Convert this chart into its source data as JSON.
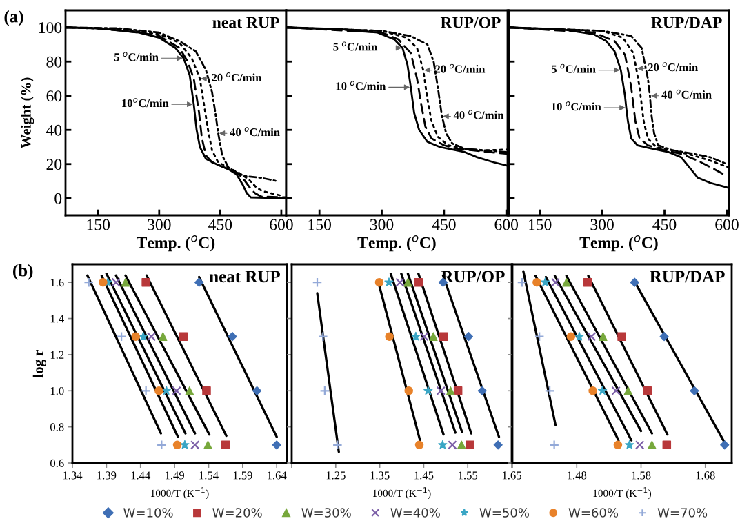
{
  "chart_data": [
    {
      "type": "line",
      "title": "neat RUP",
      "xlabel": "Temp. ($^{o}$C)",
      "ylabel": "Weight (%)",
      "xlim": [
        70,
        612
      ],
      "xticks": [
        150,
        300,
        450,
        600
      ],
      "ylim": [
        -10,
        110
      ],
      "yticks": [
        0,
        20,
        40,
        60,
        80,
        100
      ],
      "annotations": [
        "(a)",
        {
          "text": "5 $^{o}$C/min",
          "x": 360,
          "y": 82
        },
        {
          "text": "10$^{o}$C/min",
          "x": 385,
          "y": 55
        },
        {
          "text": "20 $^{o}$C/min",
          "x": 400,
          "y": 70
        },
        {
          "text": "40 $^{o}$C/min",
          "x": 445,
          "y": 38
        }
      ],
      "series": [
        {
          "type": "line",
          "color": "#000000",
          "line_style": "solid",
          "x": [
            70,
            150,
            250,
            300,
            340,
            360,
            375,
            385,
            392,
            400,
            415,
            440,
            470,
            490,
            505,
            515,
            525,
            612
          ],
          "values": [
            100,
            99.5,
            97,
            94,
            88,
            82,
            72,
            55,
            40,
            30,
            23,
            20,
            17,
            14,
            8,
            3,
            0.5,
            0
          ]
        },
        {
          "type": "line",
          "color": "#000000",
          "line_style": "dashed",
          "x": [
            70,
            150,
            250,
            300,
            350,
            370,
            385,
            398,
            405,
            415,
            430,
            460,
            490,
            505,
            520,
            535,
            550,
            612
          ],
          "values": [
            100,
            99.5,
            97,
            95,
            88,
            80,
            70,
            50,
            35,
            25,
            21,
            18,
            15,
            12,
            7,
            3,
            1,
            0.5
          ]
        },
        {
          "type": "line",
          "color": "#000000",
          "line_style": "dotted",
          "x": [
            70,
            200,
            300,
            350,
            380,
            400,
            412,
            420,
            430,
            445,
            470,
            495,
            520,
            540,
            555,
            600
          ],
          "values": [
            100,
            99,
            96,
            91,
            82,
            70,
            52,
            40,
            28,
            21,
            18,
            15,
            11,
            6,
            4,
            1.5
          ]
        },
        {
          "type": "line",
          "color": "#000000",
          "line_style": "dashdot",
          "x": [
            70,
            200,
            300,
            350,
            390,
            415,
            430,
            438,
            445,
            455,
            470,
            490,
            510,
            550,
            590
          ],
          "values": [
            100,
            99.5,
            97,
            92,
            86,
            75,
            62,
            50,
            38,
            25,
            18,
            15,
            13,
            12,
            10
          ]
        }
      ]
    },
    {
      "type": "line",
      "title": "RUP/OP",
      "xlabel": "Temp. ($^{o}$C)",
      "xlim": [
        70,
        603
      ],
      "xticks": [
        150,
        300,
        450,
        600
      ],
      "ylim": [
        -10,
        110
      ],
      "yticks": [
        0,
        20,
        40,
        60,
        80,
        100
      ],
      "tick_labels": "x",
      "annotations": [
        {
          "text": "5 $^{o}$C/min",
          "x": 350,
          "y": 88
        },
        {
          "text": "10 $^{o}$C/min",
          "x": 370,
          "y": 65
        },
        {
          "text": "20 $^{o}$C/min",
          "x": 400,
          "y": 75
        },
        {
          "text": "40 $^{o}$C/min",
          "x": 445,
          "y": 48
        }
      ],
      "series": [
        {
          "type": "line",
          "color": "#000000",
          "line_style": "solid",
          "x": [
            70,
            200,
            290,
            330,
            350,
            362,
            370,
            378,
            390,
            410,
            440,
            480,
            500,
            530,
            570,
            603
          ],
          "values": [
            100,
            99,
            97,
            93,
            88,
            78,
            65,
            50,
            40,
            33,
            30,
            28,
            27,
            24,
            21,
            19
          ]
        },
        {
          "type": "line",
          "color": "#000000",
          "line_style": "dashed",
          "x": [
            70,
            300,
            340,
            370,
            385,
            395,
            405,
            420,
            450,
            480,
            520,
            560,
            603
          ],
          "values": [
            100,
            97,
            93,
            85,
            70,
            55,
            42,
            35,
            31,
            29,
            28,
            27,
            26
          ]
        },
        {
          "type": "line",
          "color": "#000000",
          "line_style": "dotted",
          "x": [
            70,
            300,
            360,
            385,
            400,
            410,
            420,
            435,
            460,
            500,
            540,
            603
          ],
          "values": [
            100,
            98,
            94,
            88,
            75,
            58,
            45,
            36,
            31,
            29,
            28,
            28.5
          ]
        },
        {
          "type": "line",
          "color": "#000000",
          "line_style": "dashdot",
          "x": [
            70,
            300,
            370,
            410,
            425,
            435,
            445,
            455,
            470,
            500,
            550,
            603
          ],
          "values": [
            100,
            98,
            95,
            90,
            80,
            65,
            48,
            38,
            32,
            29,
            28,
            27
          ]
        }
      ]
    },
    {
      "type": "line",
      "title": "RUP/DAP",
      "xlabel": "Temp. ($^{o}$C)",
      "xlim": [
        76,
        605
      ],
      "xticks": [
        150,
        300,
        450,
        600
      ],
      "ylim": [
        -10,
        110
      ],
      "yticks": [
        0,
        20,
        40,
        60,
        80,
        100
      ],
      "tick_labels": "x",
      "annotations": [
        {
          "text": "5 $^{o}$C/min",
          "x": 345,
          "y": 75
        },
        {
          "text": "10 $^{o}$C/min",
          "x": 358,
          "y": 53
        },
        {
          "text": "20 $^{o}$C/min",
          "x": 382,
          "y": 76
        },
        {
          "text": "40 $^{o}$C/min",
          "x": 415,
          "y": 60
        }
      ],
      "series": [
        {
          "type": "line",
          "color": "#000000",
          "line_style": "solid",
          "x": [
            76,
            200,
            280,
            310,
            330,
            345,
            355,
            358,
            362,
            370,
            385,
            420,
            460,
            490,
            510,
            530,
            560,
            590,
            605
          ],
          "values": [
            100,
            99,
            96,
            92,
            86,
            75,
            60,
            53,
            45,
            35,
            31,
            29,
            27,
            24,
            18,
            12,
            9,
            7,
            6
          ]
        },
        {
          "type": "line",
          "color": "#000000",
          "line_style": "dashed",
          "x": [
            76,
            280,
            330,
            355,
            370,
            380,
            390,
            410,
            450,
            490,
            530,
            570,
            600
          ],
          "values": [
            100,
            97,
            92,
            84,
            65,
            45,
            35,
            31,
            28,
            26,
            22,
            17,
            13
          ]
        },
        {
          "type": "line",
          "color": "#000000",
          "line_style": "dotted",
          "x": [
            76,
            300,
            350,
            375,
            382,
            390,
            400,
            410,
            430,
            470,
            520,
            560,
            605
          ],
          "values": [
            100,
            98,
            94,
            85,
            76,
            65,
            45,
            35,
            30,
            28,
            25,
            22,
            18
          ]
        },
        {
          "type": "line",
          "color": "#000000",
          "line_style": "dashdot",
          "x": [
            76,
            300,
            370,
            395,
            410,
            415,
            418,
            425,
            435,
            470,
            520,
            560,
            600
          ],
          "values": [
            100,
            98,
            95,
            88,
            70,
            60,
            50,
            38,
            31,
            28,
            26,
            24,
            20
          ]
        }
      ]
    },
    {
      "type": "scatter",
      "title": "neat RUP",
      "xlabel": "1000/T (K$^{−1}$)",
      "ylabel": "log r",
      "xlim": [
        1.34,
        1.655
      ],
      "xticks": [
        1.34,
        1.39,
        1.44,
        1.49,
        1.54,
        1.59,
        1.64
      ],
      "ylim": [
        0.6,
        1.7
      ],
      "yticks": [
        0.6,
        0.8,
        {
          "value": 1.0,
          "label": "1.0"
        },
        1.2,
        1.4,
        1.6
      ],
      "annotations": [
        "(b)"
      ],
      "series": [
        {
          "type": "scatter",
          "color": "#3f6fb5",
          "marker": "diamond",
          "x": [
            1.526,
            1.575,
            1.611,
            1.64
          ],
          "values": [
            1.6,
            1.3,
            1.0,
            0.7
          ]
        },
        {
          "type": "scatter",
          "color": "#b8383a",
          "marker": "square",
          "x": [
            1.448,
            1.503,
            1.537,
            1.565
          ],
          "values": [
            1.6,
            1.3,
            1.0,
            0.7
          ]
        },
        {
          "type": "scatter",
          "color": "#77a83c",
          "marker": "triangle",
          "x": [
            1.418,
            1.473,
            1.512,
            1.539
          ],
          "values": [
            1.6,
            1.3,
            1.0,
            0.7
          ]
        },
        {
          "type": "scatter",
          "color": "#7b5ea7",
          "marker": "cross",
          "x": [
            1.404,
            1.456,
            1.493,
            1.52
          ],
          "values": [
            1.6,
            1.3,
            1.0,
            0.7
          ]
        },
        {
          "type": "scatter",
          "color": "#3aa6c5",
          "marker": "star",
          "x": [
            1.392,
            1.444,
            1.478,
            1.505
          ],
          "values": [
            1.6,
            1.3,
            1.0,
            0.7
          ]
        },
        {
          "type": "scatter",
          "color": "#e8822a",
          "marker": "circle",
          "x": [
            1.385,
            1.433,
            1.467,
            1.494
          ],
          "values": [
            1.6,
            1.3,
            1.0,
            0.7
          ]
        },
        {
          "type": "scatter",
          "color": "#93a9d8",
          "marker": "plus",
          "x": [
            1.364,
            1.412,
            1.448,
            1.471
          ],
          "values": [
            1.6,
            1.3,
            1.0,
            0.7
          ]
        },
        {
          "type": "line",
          "color": "#000000",
          "x": [
            1.526,
            1.64
          ],
          "values": [
            1.629,
            0.745
          ]
        },
        {
          "type": "line",
          "color": "#000000",
          "x": [
            1.449,
            1.566
          ],
          "values": [
            1.638,
            0.751
          ]
        },
        {
          "type": "line",
          "color": "#000000",
          "x": [
            1.418,
            1.541
          ],
          "values": [
            1.638,
            0.758
          ]
        },
        {
          "type": "line",
          "color": "#000000",
          "x": [
            1.404,
            1.52
          ],
          "values": [
            1.638,
            0.764
          ]
        },
        {
          "type": "line",
          "color": "#000000",
          "x": [
            1.39,
            1.506
          ],
          "values": [
            1.648,
            0.764
          ]
        },
        {
          "type": "line",
          "color": "#000000",
          "x": [
            1.383,
            1.495
          ],
          "values": [
            1.636,
            0.745
          ]
        },
        {
          "type": "line",
          "color": "#000000",
          "x": [
            1.362,
            1.47
          ],
          "values": [
            1.638,
            0.764
          ]
        }
      ]
    },
    {
      "type": "scatter",
      "title": "RUP/OP",
      "xlabel": "1000/T (K$^{−1}$)",
      "xlim": [
        1.15,
        1.65
      ],
      "xticks": [
        {
          "value": 1.15,
          "label": null
        },
        1.25,
        1.35,
        1.45,
        1.55,
        1.65
      ],
      "ylim": [
        0.6,
        1.7
      ],
      "yticks": [
        0.6,
        0.8,
        1.0,
        1.2,
        1.4,
        1.6
      ],
      "tick_labels": "x",
      "legend": "bottom",
      "series": [
        {
          "type": "scatter",
          "name": "W=10%",
          "color": "#3f6fb5",
          "marker": "diamond",
          "x": [
            1.494,
            1.552,
            1.583,
            1.619
          ],
          "values": [
            1.6,
            1.3,
            1.0,
            0.7
          ]
        },
        {
          "type": "scatter",
          "name": "W=20%",
          "color": "#b8383a",
          "marker": "square",
          "x": [
            1.438,
            1.495,
            1.528,
            1.555
          ],
          "values": [
            1.6,
            1.3,
            1.0,
            0.7
          ]
        },
        {
          "type": "scatter",
          "name": "W=30%",
          "color": "#77a83c",
          "marker": "triangle",
          "x": [
            1.414,
            1.472,
            1.511,
            1.536
          ],
          "values": [
            1.6,
            1.3,
            1.0,
            0.7
          ]
        },
        {
          "type": "scatter",
          "name": "W=40%",
          "color": "#7b5ea7",
          "marker": "cross",
          "x": [
            1.396,
            1.451,
            1.489,
            1.515
          ],
          "values": [
            1.6,
            1.3,
            1.0,
            0.7
          ]
        },
        {
          "type": "scatter",
          "name": "W=50%",
          "color": "#3aa6c5",
          "marker": "star",
          "x": [
            1.371,
            1.432,
            1.46,
            1.493
          ],
          "values": [
            1.6,
            1.3,
            1.0,
            0.7
          ]
        },
        {
          "type": "scatter",
          "name": "W=60%",
          "color": "#e8822a",
          "marker": "circle",
          "x": [
            1.349,
            1.372,
            1.416,
            1.44
          ],
          "values": [
            1.6,
            1.3,
            1.0,
            0.7
          ]
        },
        {
          "type": "scatter",
          "name": "W=70%",
          "color": "#93a9d8",
          "marker": "plus",
          "x": [
            1.208,
            1.221,
            1.225,
            1.254
          ],
          "values": [
            1.6,
            1.3,
            1.0,
            0.7
          ]
        },
        {
          "type": "line",
          "color": "#000000",
          "x": [
            1.494,
            1.621
          ],
          "values": [
            1.638,
            0.745
          ]
        },
        {
          "type": "line",
          "color": "#000000",
          "x": [
            1.438,
            1.558
          ],
          "values": [
            1.648,
            0.764
          ]
        },
        {
          "type": "line",
          "color": "#000000",
          "x": [
            1.414,
            1.537
          ],
          "values": [
            1.648,
            0.773
          ]
        },
        {
          "type": "line",
          "color": "#000000",
          "x": [
            1.399,
            1.522
          ],
          "values": [
            1.648,
            0.768
          ]
        },
        {
          "type": "line",
          "color": "#000000",
          "x": [
            1.375,
            1.495
          ],
          "values": [
            1.648,
            0.758
          ]
        },
        {
          "type": "line",
          "color": "#000000",
          "x": [
            1.348,
            1.442
          ],
          "values": [
            1.591,
            0.722
          ]
        },
        {
          "type": "line",
          "color": "#000000",
          "x": [
            1.208,
            1.257
          ],
          "values": [
            1.54,
            0.662
          ]
        }
      ]
    },
    {
      "type": "scatter",
      "title": "RUP/DAP",
      "xlabel": "1000/T (K$^{−1}$)",
      "xlim": [
        1.38,
        1.721
      ],
      "xticks": [
        {
          "value": 1.38,
          "label": null
        },
        1.48,
        1.58,
        1.68
      ],
      "ylim": [
        0.6,
        1.7
      ],
      "yticks": [
        0.6,
        0.8,
        1.0,
        1.2,
        1.4,
        1.6
      ],
      "tick_labels": "x",
      "series": [
        {
          "type": "scatter",
          "color": "#3f6fb5",
          "marker": "diamond",
          "x": [
            1.57,
            1.616,
            1.663,
            1.71
          ],
          "values": [
            1.6,
            1.3,
            1.0,
            0.7
          ]
        },
        {
          "type": "scatter",
          "color": "#b8383a",
          "marker": "square",
          "x": [
            1.497,
            1.55,
            1.59,
            1.62
          ],
          "values": [
            1.6,
            1.3,
            1.0,
            0.7
          ]
        },
        {
          "type": "scatter",
          "color": "#77a83c",
          "marker": "triangle",
          "x": [
            1.464,
            1.521,
            1.56,
            1.597
          ],
          "values": [
            1.6,
            1.3,
            1.0,
            0.7
          ]
        },
        {
          "type": "scatter",
          "color": "#7b5ea7",
          "marker": "cross",
          "x": [
            1.447,
            1.503,
            1.541,
            1.578
          ],
          "values": [
            1.6,
            1.3,
            1.0,
            0.7
          ]
        },
        {
          "type": "scatter",
          "color": "#3aa6c5",
          "marker": "star",
          "x": [
            1.431,
            1.484,
            1.52,
            1.562
          ],
          "values": [
            1.6,
            1.3,
            1.0,
            0.7
          ]
        },
        {
          "type": "scatter",
          "color": "#e8822a",
          "marker": "circle",
          "x": [
            1.418,
            1.471,
            1.505,
            1.544
          ],
          "values": [
            1.6,
            1.3,
            1.0,
            0.7
          ]
        },
        {
          "type": "scatter",
          "color": "#93a9d8",
          "marker": "plus",
          "x": [
            1.395,
            1.422,
            1.438,
            1.445
          ],
          "values": [
            1.6,
            1.3,
            1.0,
            0.7
          ]
        },
        {
          "type": "line",
          "color": "#000000",
          "x": [
            1.57,
            1.71
          ],
          "values": [
            1.604,
            0.713
          ]
        },
        {
          "type": "line",
          "color": "#000000",
          "x": [
            1.498,
            1.621
          ],
          "values": [
            1.636,
            0.758
          ]
        },
        {
          "type": "line",
          "color": "#000000",
          "x": [
            1.464,
            1.597
          ],
          "values": [
            1.636,
            0.764
          ]
        },
        {
          "type": "line",
          "color": "#000000",
          "x": [
            1.446,
            1.58
          ],
          "values": [
            1.636,
            0.777
          ]
        },
        {
          "type": "line",
          "color": "#000000",
          "x": [
            1.432,
            1.565
          ],
          "values": [
            1.629,
            0.726
          ]
        },
        {
          "type": "line",
          "color": "#000000",
          "x": [
            1.416,
            1.545
          ],
          "values": [
            1.636,
            0.726
          ]
        },
        {
          "type": "line",
          "color": "#000000",
          "x": [
            1.397,
            1.447
          ],
          "values": [
            1.661,
            0.811
          ]
        }
      ]
    }
  ]
}
